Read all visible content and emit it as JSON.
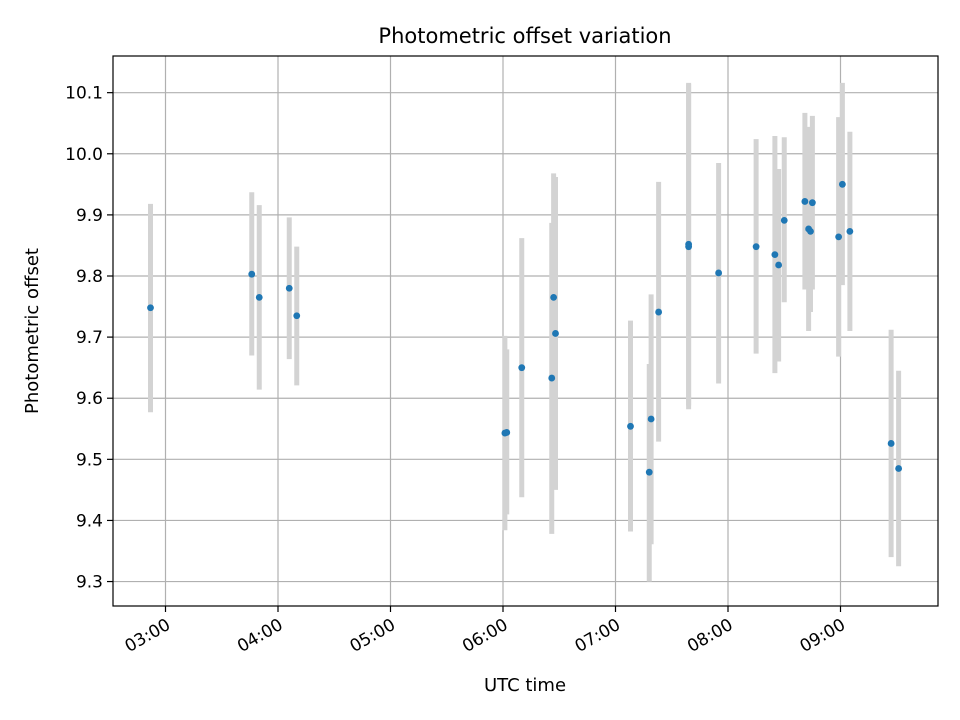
{
  "chart_data": {
    "type": "scatter",
    "title": "Photometric offset variation",
    "xlabel": "UTC time",
    "ylabel": "Photometric offset",
    "x_is_time": true,
    "xlim": [
      "02:32",
      "09:52"
    ],
    "ylim": [
      9.26,
      10.16
    ],
    "x_ticks": [
      "03:00",
      "04:00",
      "05:00",
      "06:00",
      "07:00",
      "08:00",
      "09:00"
    ],
    "y_ticks": [
      9.3,
      9.4,
      9.5,
      9.6,
      9.7,
      9.8,
      9.9,
      10.0,
      10.1
    ],
    "grid": true,
    "point_color": "#1f77b4",
    "errorbar_color": "#d3d3d3",
    "points": [
      {
        "x": "02:52",
        "y": 9.748,
        "ylow": 9.577,
        "yhigh": 9.918
      },
      {
        "x": "03:46",
        "y": 9.803,
        "ylow": 9.67,
        "yhigh": 9.937
      },
      {
        "x": "03:50",
        "y": 9.765,
        "ylow": 9.614,
        "yhigh": 9.916
      },
      {
        "x": "04:06",
        "y": 9.78,
        "ylow": 9.664,
        "yhigh": 9.896
      },
      {
        "x": "04:10",
        "y": 9.735,
        "ylow": 9.621,
        "yhigh": 9.848
      },
      {
        "x": "06:01",
        "y": 9.543,
        "ylow": 9.384,
        "yhigh": 9.702
      },
      {
        "x": "06:02",
        "y": 9.544,
        "ylow": 9.41,
        "yhigh": 9.68
      },
      {
        "x": "06:10",
        "y": 9.65,
        "ylow": 9.438,
        "yhigh": 9.862
      },
      {
        "x": "06:26",
        "y": 9.633,
        "ylow": 9.378,
        "yhigh": 9.887
      },
      {
        "x": "06:27",
        "y": 9.765,
        "ylow": 9.563,
        "yhigh": 9.968
      },
      {
        "x": "06:28",
        "y": 9.706,
        "ylow": 9.45,
        "yhigh": 9.962
      },
      {
        "x": "07:08",
        "y": 9.554,
        "ylow": 9.382,
        "yhigh": 9.727
      },
      {
        "x": "07:18",
        "y": 9.479,
        "ylow": 9.3,
        "yhigh": 9.656
      },
      {
        "x": "07:19",
        "y": 9.566,
        "ylow": 9.361,
        "yhigh": 9.77
      },
      {
        "x": "07:23",
        "y": 9.741,
        "ylow": 9.529,
        "yhigh": 9.954
      },
      {
        "x": "07:39",
        "y": 9.852,
        "ylow": 9.588,
        "yhigh": 10.116
      },
      {
        "x": "07:39",
        "y": 9.848,
        "ylow": 9.582,
        "yhigh": 10.114
      },
      {
        "x": "07:55",
        "y": 9.805,
        "ylow": 9.624,
        "yhigh": 9.985
      },
      {
        "x": "08:15",
        "y": 9.848,
        "ylow": 9.673,
        "yhigh": 10.024
      },
      {
        "x": "08:25",
        "y": 9.835,
        "ylow": 9.641,
        "yhigh": 10.029
      },
      {
        "x": "08:27",
        "y": 9.818,
        "ylow": 9.66,
        "yhigh": 9.975
      },
      {
        "x": "08:30",
        "y": 9.891,
        "ylow": 9.757,
        "yhigh": 10.027
      },
      {
        "x": "08:41",
        "y": 9.922,
        "ylow": 9.778,
        "yhigh": 10.067
      },
      {
        "x": "08:43",
        "y": 9.877,
        "ylow": 9.71,
        "yhigh": 10.044
      },
      {
        "x": "08:44",
        "y": 9.873,
        "ylow": 9.741,
        "yhigh": 10.006
      },
      {
        "x": "08:45",
        "y": 9.92,
        "ylow": 9.778,
        "yhigh": 10.062
      },
      {
        "x": "08:59",
        "y": 9.864,
        "ylow": 9.668,
        "yhigh": 10.06
      },
      {
        "x": "09:01",
        "y": 9.95,
        "ylow": 9.785,
        "yhigh": 10.116
      },
      {
        "x": "09:05",
        "y": 9.873,
        "ylow": 9.71,
        "yhigh": 10.036
      },
      {
        "x": "09:27",
        "y": 9.526,
        "ylow": 9.34,
        "yhigh": 9.712
      },
      {
        "x": "09:31",
        "y": 9.485,
        "ylow": 9.325,
        "yhigh": 9.645
      }
    ]
  }
}
